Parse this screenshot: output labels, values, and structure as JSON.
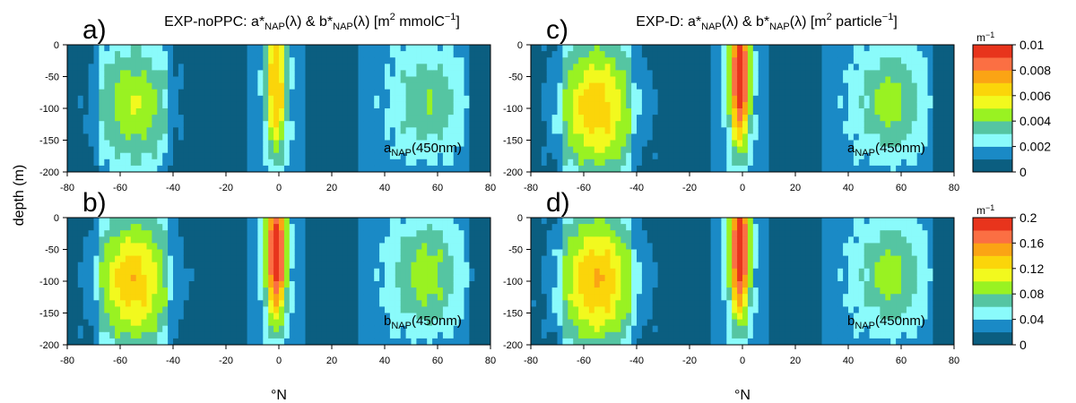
{
  "figure": {
    "titles": [
      {
        "prefix": "EXP-noPPC: a*",
        "sub1": "NAP",
        "mid1": "(λ) & b*",
        "sub2": "NAP",
        "mid2": "(λ) [m",
        "sup1": "2",
        "mid3": " mmolC",
        "sup2": "−1",
        "suffix": "]"
      },
      {
        "prefix": "EXP-D: a*",
        "sub1": "NAP",
        "mid1": "(λ) & b*",
        "sub2": "NAP",
        "mid2": "(λ) [m",
        "sup1": "2",
        "mid3": " particle",
        "sup2": "−1",
        "suffix": "]"
      }
    ],
    "ylabel": "depth (m)",
    "xlabel": "°N",
    "x_ticks": [
      -80,
      -60,
      -40,
      -20,
      0,
      20,
      40,
      60,
      80
    ],
    "y_ticks": [
      0,
      -50,
      -100,
      -150,
      -200
    ],
    "colors": [
      "#0b5e80",
      "#1a8ac6",
      "#8afbfb",
      "#55c5a2",
      "#99f222",
      "#f2f91e",
      "#fbd50a",
      "#fba414",
      "#fb6f43",
      "#e8341c"
    ],
    "colorbars": [
      {
        "unit_base": "m",
        "unit_sup": "−1",
        "ticks": [
          "0",
          "0.002",
          "0.004",
          "0.006",
          "0.008",
          "0.01"
        ]
      },
      {
        "unit_base": "m",
        "unit_sup": "−1",
        "ticks": [
          "0",
          "0.04",
          "0.08",
          "0.12",
          "0.16",
          "0.2"
        ]
      }
    ]
  },
  "chart_data": [
    {
      "panel": "a)",
      "type": "heatmap",
      "variable_prefix": "a",
      "variable_sub": "NAP",
      "variable_suffix": "(450nm)",
      "x_range": [
        -80,
        80
      ],
      "y_range": [
        -200,
        0
      ],
      "peak_level": 6,
      "blobs": [
        {
          "lat": -55,
          "depth": -95,
          "width": 18,
          "thick": 120,
          "amp": 3.6
        },
        {
          "lat": -1,
          "depth": -60,
          "width": 5,
          "thick": 150,
          "amp": 6.2
        },
        {
          "lat": 56,
          "depth": -90,
          "width": 17,
          "thick": 110,
          "amp": 2.6
        }
      ]
    },
    {
      "panel": "b)",
      "type": "heatmap",
      "variable_prefix": "b",
      "variable_sub": "NAP",
      "variable_suffix": "(450nm)",
      "x_range": [
        -80,
        80
      ],
      "y_range": [
        -200,
        0
      ],
      "peak_level": 9,
      "blobs": [
        {
          "lat": -55,
          "depth": -100,
          "width": 18,
          "thick": 130,
          "amp": 5.4
        },
        {
          "lat": -1,
          "depth": -55,
          "width": 5,
          "thick": 140,
          "amp": 9.4
        },
        {
          "lat": 56,
          "depth": -90,
          "width": 17,
          "thick": 110,
          "amp": 3.2
        }
      ]
    },
    {
      "panel": "c)",
      "type": "heatmap",
      "variable_prefix": "a",
      "variable_sub": "NAP",
      "variable_suffix": "(450nm)",
      "x_range": [
        -80,
        80
      ],
      "y_range": [
        -200,
        0
      ],
      "peak_level": 9,
      "blobs": [
        {
          "lat": -55,
          "depth": -100,
          "width": 19,
          "thick": 135,
          "amp": 5.3
        },
        {
          "lat": -1,
          "depth": -50,
          "width": 5,
          "thick": 145,
          "amp": 9.2
        },
        {
          "lat": 56,
          "depth": -90,
          "width": 17,
          "thick": 110,
          "amp": 3.0
        }
      ]
    },
    {
      "panel": "d)",
      "type": "heatmap",
      "variable_prefix": "b",
      "variable_sub": "NAP",
      "variable_suffix": "(450nm)",
      "x_range": [
        -80,
        80
      ],
      "y_range": [
        -200,
        0
      ],
      "peak_level": 9,
      "blobs": [
        {
          "lat": -55,
          "depth": -100,
          "width": 19,
          "thick": 135,
          "amp": 5.6
        },
        {
          "lat": -1,
          "depth": -50,
          "width": 5,
          "thick": 145,
          "amp": 9.3
        },
        {
          "lat": 56,
          "depth": -90,
          "width": 17,
          "thick": 110,
          "amp": 3.0
        }
      ]
    }
  ]
}
